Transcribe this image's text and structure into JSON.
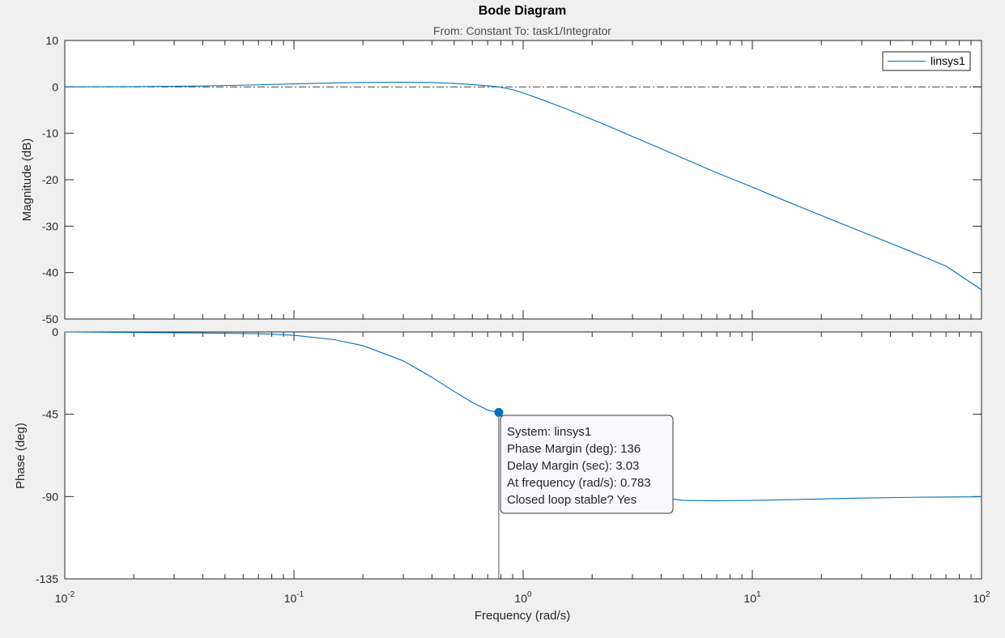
{
  "chart_data": {
    "type": "line",
    "title": "Bode Diagram",
    "subtitle": "From: Constant  To: task1/Integrator",
    "xlabel": "Frequency  (rad/s)",
    "xscale": "log",
    "xlim": [
      0.01,
      100
    ],
    "xticks": [
      {
        "base": "10",
        "exp": "-2",
        "value": 0.01
      },
      {
        "base": "10",
        "exp": "-1",
        "value": 0.1
      },
      {
        "base": "10",
        "exp": "0",
        "value": 1
      },
      {
        "base": "10",
        "exp": "1",
        "value": 10
      },
      {
        "base": "10",
        "exp": "2",
        "value": 100
      }
    ],
    "grid": false,
    "legend": {
      "position": "top-right",
      "entries": [
        "linsys1"
      ]
    },
    "magnitude": {
      "ylabel": "Magnitude (dB)",
      "ylim": [
        -50,
        10
      ],
      "yticks": [
        "10",
        "0",
        "-10",
        "-20",
        "-30",
        "-40",
        "-50"
      ],
      "reference_line_db": 0,
      "series": [
        {
          "name": "linsys1",
          "color": "#0072bd",
          "x": [
            0.01,
            0.02,
            0.04,
            0.07,
            0.1,
            0.15,
            0.2,
            0.3,
            0.4,
            0.5,
            0.6,
            0.7,
            0.783,
            0.9,
            1.0,
            1.2,
            1.5,
            2.0,
            2.5,
            3.0,
            4.0,
            5.0,
            7.0,
            10,
            15,
            20,
            30,
            50,
            70,
            100
          ],
          "y": [
            0.0,
            0.05,
            0.2,
            0.45,
            0.65,
            0.85,
            0.95,
            1.0,
            0.95,
            0.75,
            0.5,
            0.25,
            0.0,
            -0.6,
            -1.3,
            -2.7,
            -4.5,
            -7.0,
            -9.0,
            -10.7,
            -13.3,
            -15.4,
            -18.5,
            -21.6,
            -25.2,
            -27.7,
            -31.2,
            -35.6,
            -38.6,
            -43.7
          ]
        }
      ]
    },
    "phase": {
      "ylabel": "Phase (deg)",
      "ylim": [
        -135,
        0
      ],
      "yticks": [
        "0",
        "-45",
        "-90",
        "-135"
      ],
      "series": [
        {
          "name": "linsys1",
          "color": "#0072bd",
          "x": [
            0.01,
            0.02,
            0.04,
            0.07,
            0.1,
            0.15,
            0.2,
            0.3,
            0.4,
            0.5,
            0.6,
            0.7,
            0.783,
            0.9,
            1.0,
            1.2,
            1.5,
            2.0,
            3.0,
            5.0,
            7.0,
            10,
            20,
            30,
            50,
            100
          ],
          "y": [
            0.0,
            -0.3,
            -0.6,
            -0.9,
            -1.8,
            -4.2,
            -7.5,
            -15.8,
            -24.8,
            -32.5,
            -38.5,
            -42.7,
            -44.0,
            -53.2,
            -58.9,
            -67.8,
            -76.0,
            -82.9,
            -88.6,
            -92.1,
            -92.3,
            -92.1,
            -91.3,
            -90.8,
            -90.4,
            -90.1
          ]
        }
      ],
      "datatip": {
        "x": 0.783,
        "y": -44,
        "lines": [
          "System: linsys1",
          "Phase Margin (deg): 136",
          "Delay Margin (sec): 3.03",
          "At frequency (rad/s): 0.783",
          "Closed loop stable? Yes"
        ]
      }
    }
  }
}
